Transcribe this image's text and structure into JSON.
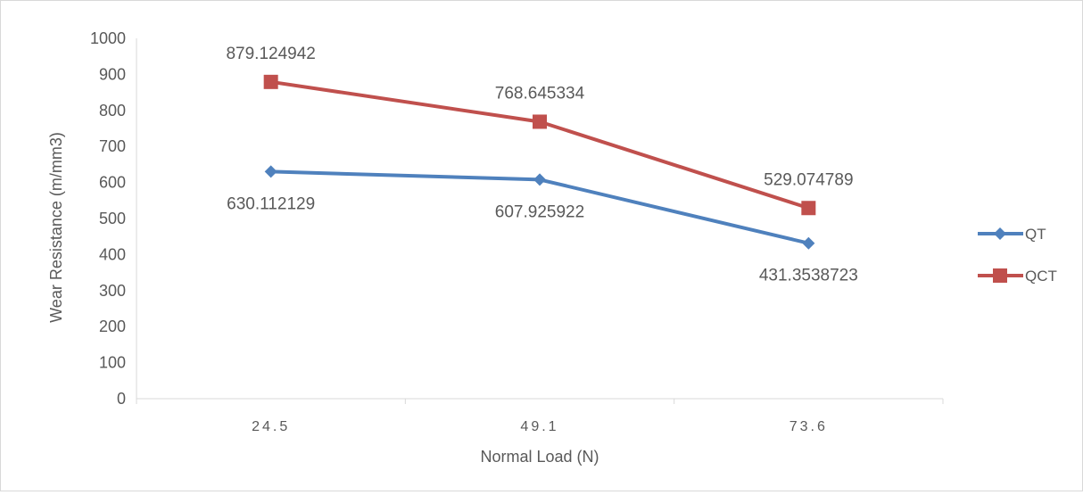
{
  "chart_data": {
    "type": "line",
    "title": "",
    "xlabel": "Normal Load (N)",
    "ylabel": "Wear Resistance (m/mm3)",
    "categories": [
      "24.5",
      "49.1",
      "73.6"
    ],
    "ylim": [
      0,
      1000
    ],
    "yticks": [
      0,
      100,
      200,
      300,
      400,
      500,
      600,
      700,
      800,
      900,
      1000
    ],
    "grid": false,
    "legend_position": "right",
    "series": [
      {
        "name": "QT",
        "color": "#4f81bd",
        "marker": "diamond",
        "values": [
          630.112129,
          607.925922,
          431.3538723
        ],
        "labels": [
          "630.112129",
          "607.925922",
          "431.3538723"
        ]
      },
      {
        "name": "QCT",
        "color": "#c0504d",
        "marker": "square",
        "values": [
          879.124942,
          768.645334,
          529.074789
        ],
        "labels": [
          "879.124942",
          "768.645334",
          "529.074789"
        ]
      }
    ]
  }
}
